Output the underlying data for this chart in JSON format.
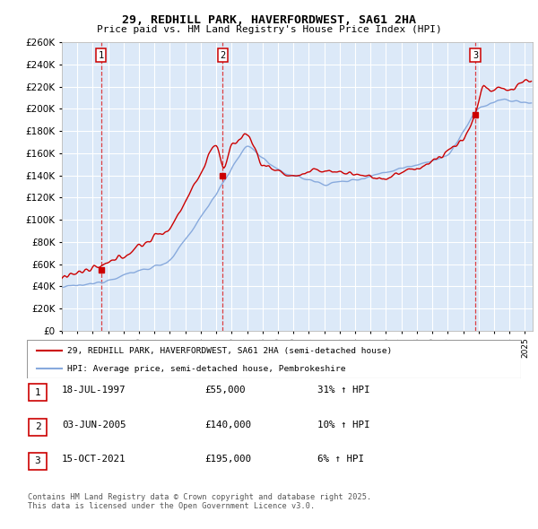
{
  "title": "29, REDHILL PARK, HAVERFORDWEST, SA61 2HA",
  "subtitle": "Price paid vs. HM Land Registry's House Price Index (HPI)",
  "plot_bg_color": "#dce9f8",
  "grid_color": "#ffffff",
  "sale_dates": [
    1997.54,
    2005.42,
    2021.79
  ],
  "sale_prices": [
    55000,
    140000,
    195000
  ],
  "sale_labels": [
    "1",
    "2",
    "3"
  ],
  "legend_entries": [
    "29, REDHILL PARK, HAVERFORDWEST, SA61 2HA (semi-detached house)",
    "HPI: Average price, semi-detached house, Pembrokeshire"
  ],
  "table_entries": [
    {
      "num": "1",
      "date": "18-JUL-1997",
      "price": "£55,000",
      "change": "31% ↑ HPI"
    },
    {
      "num": "2",
      "date": "03-JUN-2005",
      "price": "£140,000",
      "change": "10% ↑ HPI"
    },
    {
      "num": "3",
      "date": "15-OCT-2021",
      "price": "£195,000",
      "change": "6% ↑ HPI"
    }
  ],
  "footer": "Contains HM Land Registry data © Crown copyright and database right 2025.\nThis data is licensed under the Open Government Licence v3.0.",
  "ylim": [
    0,
    260000
  ],
  "yticks": [
    0,
    20000,
    40000,
    60000,
    80000,
    100000,
    120000,
    140000,
    160000,
    180000,
    200000,
    220000,
    240000,
    260000
  ],
  "xlim_start": 1995.0,
  "xlim_end": 2025.5,
  "red_line_color": "#cc0000",
  "blue_line_color": "#88aadd",
  "dashed_line_color": "#dd2222"
}
